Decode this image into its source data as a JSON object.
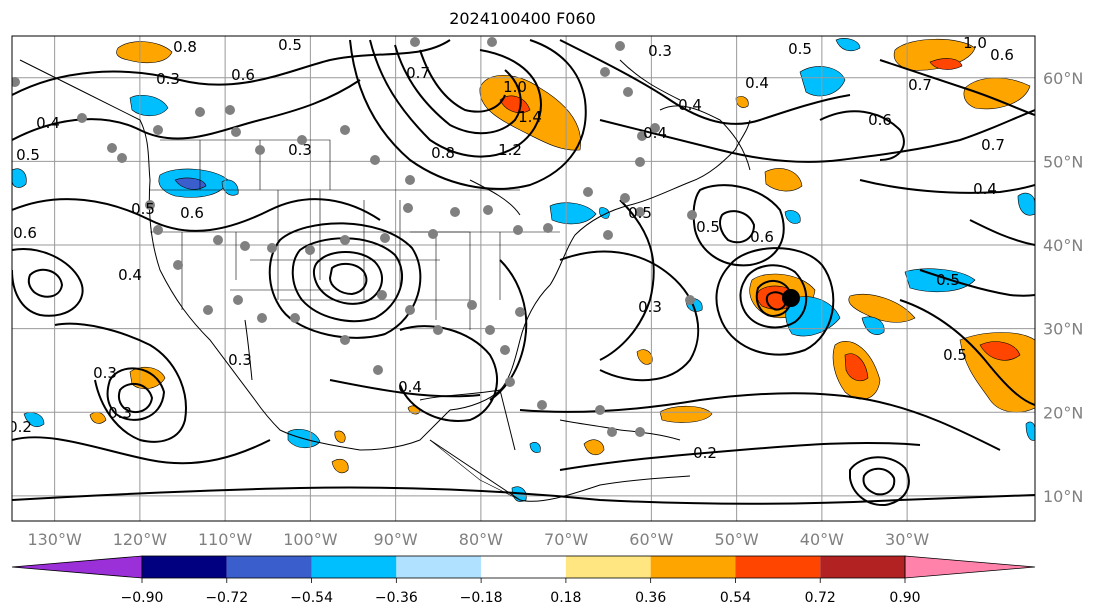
{
  "title": "2024100400 F060",
  "map": {
    "lon_range": [
      -135,
      -15
    ],
    "lat_range": [
      7,
      65
    ],
    "lon_labels": [
      "130°W",
      "120°W",
      "110°W",
      "100°W",
      "90°W",
      "80°W",
      "70°W",
      "60°W",
      "50°W",
      "40°W",
      "30°W"
    ],
    "lat_labels": [
      "60°N",
      "50°N",
      "40°N",
      "30°N",
      "20°N",
      "10°N"
    ],
    "contour_labels": [
      "0.5",
      "0.8",
      "0.3",
      "0.6",
      "0.4",
      "0.7",
      "1.0",
      "1.4",
      "1.2",
      "0.3",
      "0.4",
      "0.8",
      "0.5",
      "0.4",
      "0.7",
      "0.6",
      "0.4",
      "0.6",
      "0.5",
      "0.3",
      "0.2",
      "0.5",
      "0.5",
      "0.6",
      "0.4",
      "0.3",
      "0.4",
      "0.3",
      "0.2",
      "0.5",
      "0.3",
      "0.6",
      "0.3",
      "0.4",
      "0.5",
      "1.0",
      "0.6",
      "0.7",
      "0.5"
    ]
  },
  "colorbar": {
    "colors": [
      "#9b30d9",
      "#000080",
      "#3a5fcd",
      "#00bfff",
      "#b0e2ff",
      "#ffffff",
      "#ffe680",
      "#ffa500",
      "#ff4500",
      "#b22222",
      "#ff82ab"
    ],
    "ticks": [
      "−0.90",
      "−0.72",
      "−0.54",
      "−0.36",
      "−0.18",
      "0.18",
      "0.36",
      "0.54",
      "0.72",
      "0.90"
    ]
  }
}
